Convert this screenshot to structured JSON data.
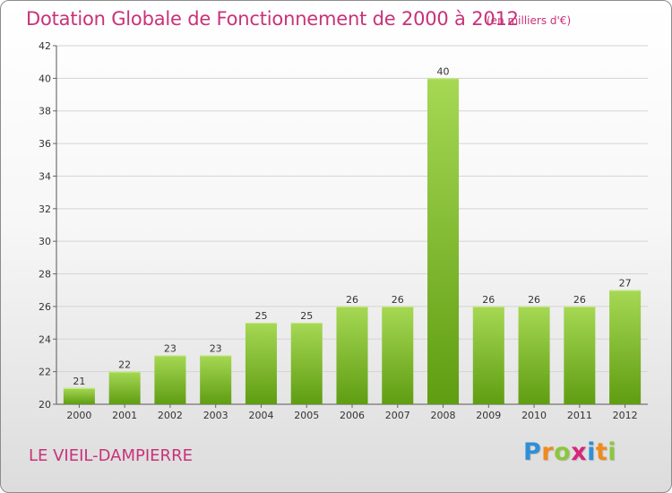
{
  "title": "Dotation Globale de Fonctionnement de 2000 à 2012",
  "units": "(en milliers d'€)",
  "commune": "LE VIEIL-DAMPIERRE",
  "logo": {
    "letters": [
      "P",
      "r",
      "o",
      "x",
      "i",
      "t",
      "i"
    ],
    "colors": [
      "#2f8fd6",
      "#f08a1c",
      "#8cc63f",
      "#d6287a",
      "#2f8fd6",
      "#f08a1c",
      "#8cc63f"
    ]
  },
  "colors": {
    "bar_light": "#a6d854",
    "bar_dark": "#5f9d12",
    "accent": "#c8327a",
    "grid": "#d4d4d4"
  },
  "chart_data": {
    "type": "bar",
    "categories": [
      "2000",
      "2001",
      "2002",
      "2003",
      "2004",
      "2005",
      "2006",
      "2007",
      "2008",
      "2009",
      "2010",
      "2011",
      "2012"
    ],
    "values": [
      21,
      22,
      23,
      23,
      25,
      25,
      26,
      26,
      40,
      26,
      26,
      26,
      27
    ],
    "ylim": [
      20,
      42
    ],
    "yticks": [
      20,
      22,
      24,
      26,
      28,
      30,
      32,
      34,
      36,
      38,
      40,
      42
    ],
    "grid": true
  }
}
